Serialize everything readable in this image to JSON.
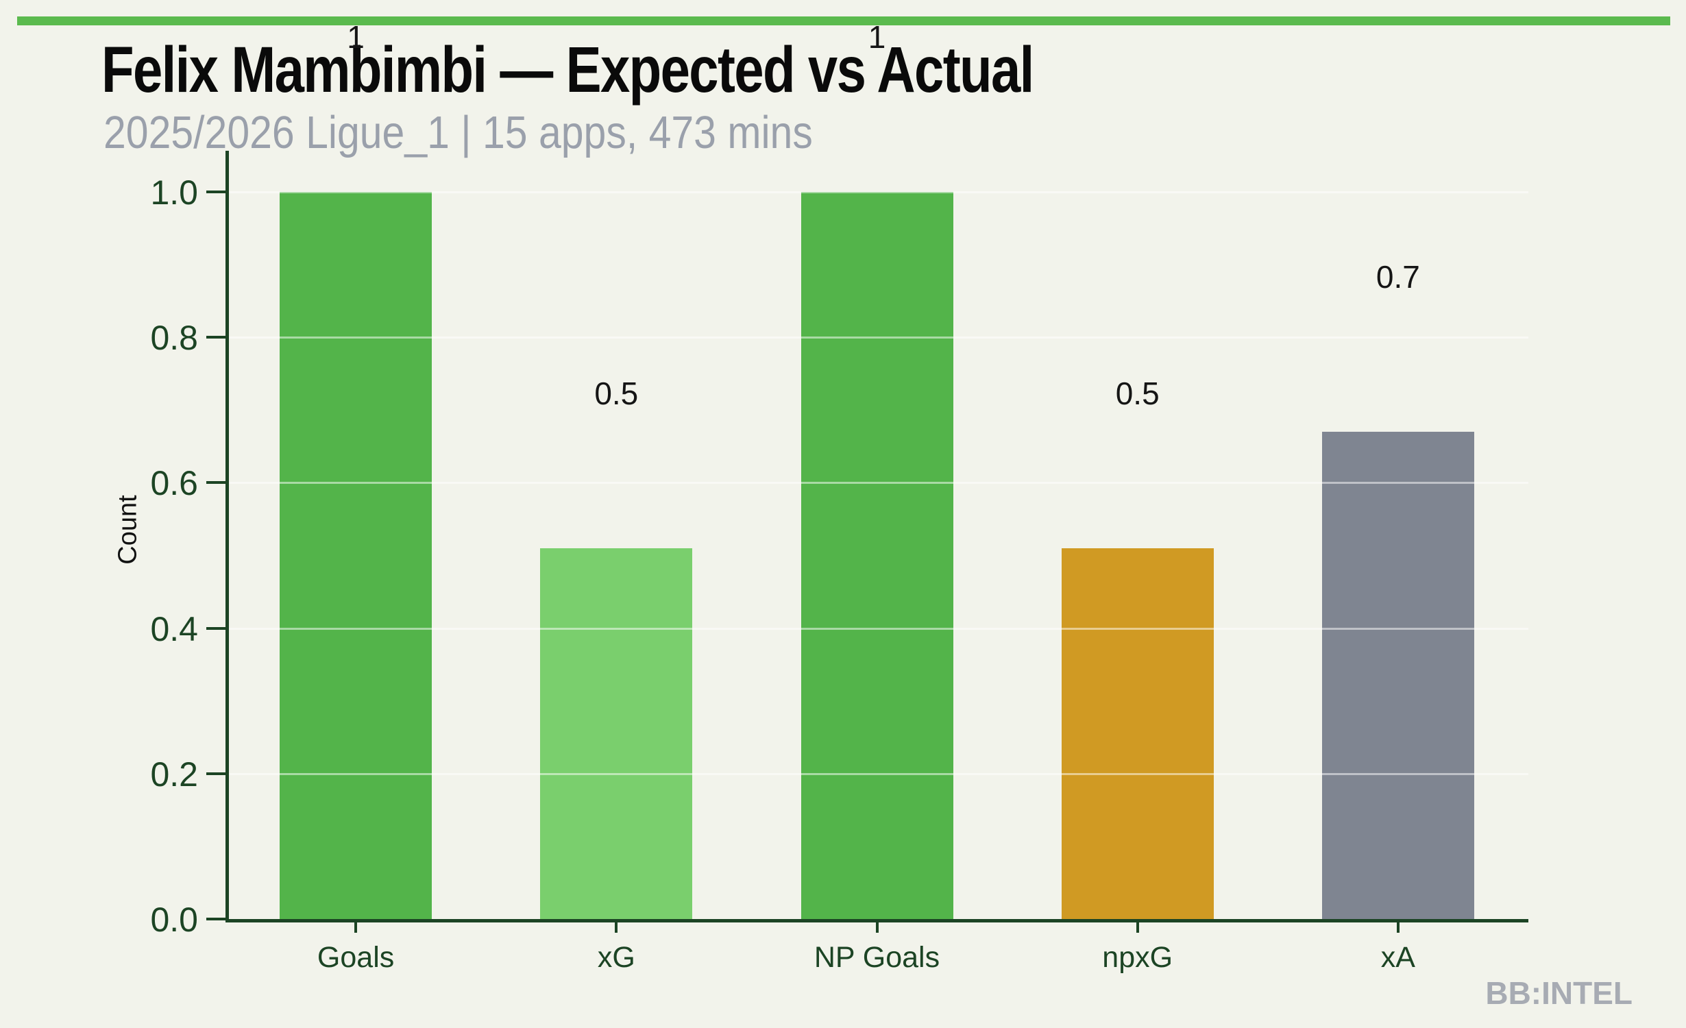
{
  "page": {
    "background_color": "#F2F3EB",
    "accent_bar_color": "#5BBA4E"
  },
  "header": {
    "title": "Felix Mambimbi — Expected vs Actual",
    "subtitle": "2025/2026 Ligue_1 | 15 apps, 473 mins"
  },
  "branding": {
    "label": "BB:INTEL",
    "color": "#A7ABB3"
  },
  "chart_data": {
    "type": "bar",
    "title": "Felix Mambimbi — Expected vs Actual",
    "subtitle": "2025/2026 Ligue_1 | 15 apps, 473 mins",
    "categories": [
      "Goals",
      "xG",
      "NP Goals",
      "npxG",
      "xA"
    ],
    "values": [
      1.0,
      0.51,
      1.0,
      0.51,
      0.67
    ],
    "bar_labels": [
      "1",
      "0.5",
      "1",
      "0.5",
      "0.7"
    ],
    "bar_colors": [
      "#53B44A",
      "#7ACF6D",
      "#53B44A",
      "#D09A23",
      "#7F8591"
    ],
    "xlabel": "",
    "ylabel": "Count",
    "ylim": [
      0.0,
      1.0
    ],
    "yticks": [
      0.0,
      0.2,
      0.4,
      0.6,
      0.8,
      1.0
    ],
    "ytick_labels": [
      "0.0",
      "0.2",
      "0.4",
      "0.6",
      "0.8",
      "1.0"
    ],
    "grid": true,
    "gridline_color": "rgba(255,255,255,0.5)",
    "legend": false,
    "axis_color": "#1C4424",
    "tick_label_color": "#1C4424",
    "value_label_color": "#151515",
    "ylabel_color": "#111111"
  }
}
